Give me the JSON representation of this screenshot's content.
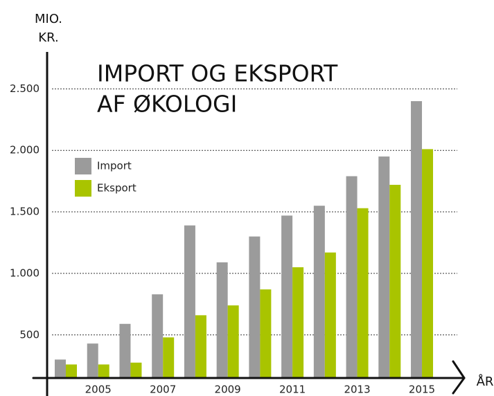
{
  "chart_data": {
    "type": "bar",
    "title": [
      "IMPORT OG EKSPORT",
      "AF ØKOLOGI"
    ],
    "y_label": [
      "MIO.",
      "KR."
    ],
    "x_label": "ÅR",
    "categories": [
      null,
      "2005",
      null,
      "2007",
      null,
      "2009",
      null,
      "2011",
      null,
      "2013",
      null,
      "2015"
    ],
    "series": [
      {
        "name": "Import",
        "color": "#9b9b9b",
        "values": [
          300,
          430,
          590,
          830,
          1390,
          1090,
          1300,
          1470,
          1550,
          1790,
          1950,
          2400
        ]
      },
      {
        "name": "Eksport",
        "color": "#a9c400",
        "values": [
          260,
          260,
          275,
          480,
          660,
          740,
          870,
          1050,
          1170,
          1530,
          1720,
          2010
        ]
      }
    ],
    "ylim": [
      150,
      2800
    ],
    "yticks": [
      {
        "value": 500,
        "label": "500"
      },
      {
        "value": 1000,
        "label": "1.000"
      },
      {
        "value": 1500,
        "label": "1.500"
      },
      {
        "value": 2000,
        "label": "2.000"
      },
      {
        "value": 2500,
        "label": "2.500"
      }
    ],
    "grid": true
  }
}
